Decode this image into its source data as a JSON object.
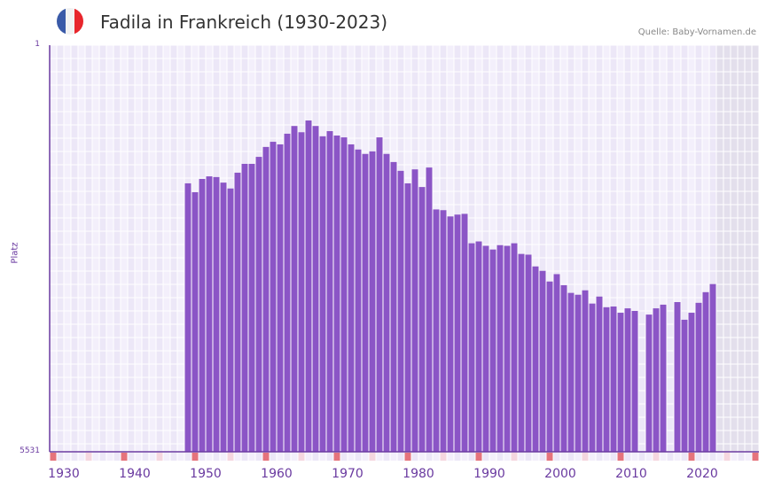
{
  "header": {
    "title": "Fadila in Frankreich (1930-2023)",
    "source": "Quelle: Baby-Vornamen.de",
    "flag_colors": [
      "#3a5aa8",
      "#f2f2f2",
      "#e8262c"
    ]
  },
  "axis": {
    "y_label": "Platz",
    "y_top_label": "1",
    "y_bottom_label": "5531",
    "x_ticks": [
      "1930",
      "1940",
      "1950",
      "1960",
      "1970",
      "1980",
      "1990",
      "2000",
      "2010",
      "2020"
    ]
  },
  "colors": {
    "bar": "#8b55c6",
    "axis": "#6a3aa0",
    "grid_bg_a": "#f3effb",
    "grid_bg_b": "#ece7f7",
    "future_shade": "#e3dfec",
    "decade_marker": "#e5737c",
    "half_decade_marker": "#f5d6df"
  },
  "chart_data": {
    "type": "bar",
    "title": "Fadila in Frankreich (1930-2023)",
    "xlabel": "",
    "ylabel": "Platz",
    "ylim": [
      5531,
      1
    ],
    "y_inverted": true,
    "x_range": [
      1930,
      2029
    ],
    "grid": true,
    "shaded_future_from": 2024,
    "x": [
      1949,
      1950,
      1951,
      1952,
      1953,
      1954,
      1955,
      1956,
      1957,
      1958,
      1959,
      1960,
      1961,
      1962,
      1963,
      1964,
      1965,
      1966,
      1967,
      1968,
      1969,
      1970,
      1971,
      1972,
      1973,
      1974,
      1975,
      1976,
      1977,
      1978,
      1979,
      1980,
      1981,
      1982,
      1983,
      1984,
      1985,
      1986,
      1987,
      1988,
      1989,
      1990,
      1991,
      1992,
      1993,
      1994,
      1995,
      1996,
      1997,
      1998,
      1999,
      2000,
      2001,
      2002,
      2003,
      2004,
      2005,
      2006,
      2007,
      2008,
      2009,
      2010,
      2011,
      2012,
      2014,
      2015,
      2016,
      2018,
      2019,
      2020,
      2021,
      2022,
      2023
    ],
    "values": [
      1880,
      2000,
      1820,
      1785,
      1795,
      1870,
      1950,
      1735,
      1615,
      1615,
      1520,
      1385,
      1315,
      1350,
      1205,
      1100,
      1185,
      1025,
      1100,
      1240,
      1170,
      1230,
      1255,
      1350,
      1420,
      1480,
      1445,
      1255,
      1480,
      1590,
      1710,
      1880,
      1690,
      1930,
      1665,
      2235,
      2245,
      2330,
      2305,
      2295,
      2695,
      2670,
      2730,
      2780,
      2720,
      2730,
      2695,
      2840,
      2850,
      3010,
      3070,
      3215,
      3115,
      3265,
      3370,
      3395,
      3335,
      3515,
      3420,
      3565,
      3555,
      3640,
      3580,
      3615,
      3665,
      3580,
      3530,
      3495,
      3735,
      3640,
      3505,
      3360,
      3250
    ]
  }
}
